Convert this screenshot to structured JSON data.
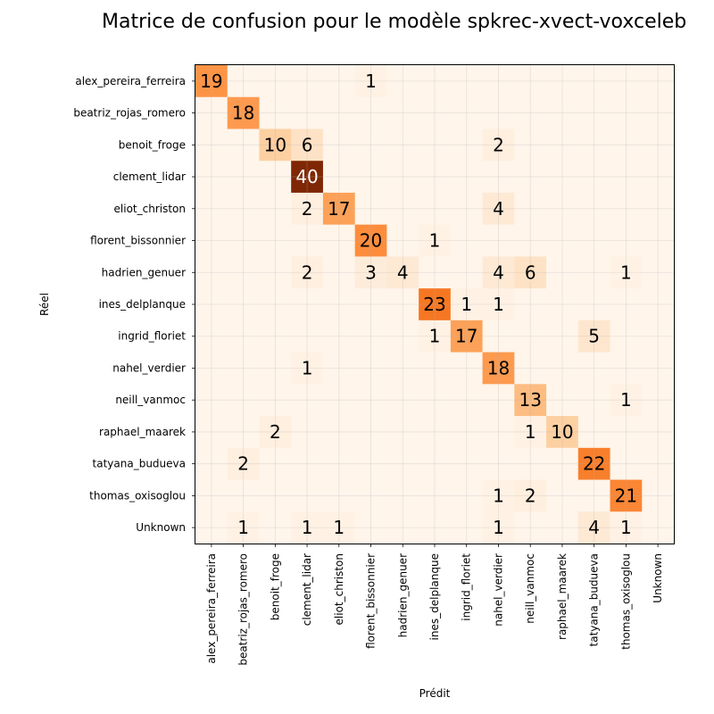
{
  "chart_data": {
    "type": "heatmap",
    "title": "Matrice de confusion pour le modèle spkrec-xvect-voxceleb",
    "xlabel": "Prédit",
    "ylabel": "Réel",
    "grid": true,
    "colormap": "Oranges",
    "colors": {
      "low": "#fff5eb",
      "mid": "#fd8d3c",
      "high": "#7f2704"
    },
    "vmax": 40,
    "row_labels": [
      "alex_pereira_ferreira",
      "beatriz_rojas_romero",
      "benoit_froge",
      "clement_lidar",
      "eliot_christon",
      "florent_bissonnier",
      "hadrien_genuer",
      "ines_delplanque",
      "ingrid_floriet",
      "nahel_verdier",
      "neill_vanmoc",
      "raphael_maarek",
      "tatyana_budueva",
      "thomas_oxisoglou",
      "Unknown"
    ],
    "col_labels": [
      "alex_pereira_ferreira",
      "beatriz_rojas_romero",
      "benoit_froge",
      "clement_lidar",
      "eliot_christon",
      "florent_bissonnier",
      "hadrien_genuer",
      "ines_delplanque",
      "ingrid_floriet",
      "nahel_verdier",
      "neill_vanmoc",
      "raphael_maarek",
      "tatyana_budueva",
      "thomas_oxisoglou",
      "Unknown"
    ],
    "matrix": [
      [
        19,
        0,
        0,
        0,
        0,
        1,
        0,
        0,
        0,
        0,
        0,
        0,
        0,
        0,
        0
      ],
      [
        0,
        18,
        0,
        0,
        0,
        0,
        0,
        0,
        0,
        0,
        0,
        0,
        0,
        0,
        0
      ],
      [
        0,
        0,
        10,
        6,
        0,
        0,
        0,
        0,
        0,
        2,
        0,
        0,
        0,
        0,
        0
      ],
      [
        0,
        0,
        0,
        40,
        0,
        0,
        0,
        0,
        0,
        0,
        0,
        0,
        0,
        0,
        0
      ],
      [
        0,
        0,
        0,
        2,
        17,
        0,
        0,
        0,
        0,
        4,
        0,
        0,
        0,
        0,
        0
      ],
      [
        0,
        0,
        0,
        0,
        0,
        20,
        0,
        1,
        0,
        0,
        0,
        0,
        0,
        0,
        0
      ],
      [
        0,
        0,
        0,
        2,
        0,
        3,
        4,
        0,
        0,
        4,
        6,
        0,
        0,
        1,
        0
      ],
      [
        0,
        0,
        0,
        0,
        0,
        0,
        0,
        23,
        1,
        1,
        0,
        0,
        0,
        0,
        0
      ],
      [
        0,
        0,
        0,
        0,
        0,
        0,
        0,
        1,
        17,
        0,
        0,
        0,
        5,
        0,
        0
      ],
      [
        0,
        0,
        0,
        1,
        0,
        0,
        0,
        0,
        0,
        18,
        0,
        0,
        0,
        0,
        0
      ],
      [
        0,
        0,
        0,
        0,
        0,
        0,
        0,
        0,
        0,
        0,
        13,
        0,
        0,
        1,
        0
      ],
      [
        0,
        0,
        2,
        0,
        0,
        0,
        0,
        0,
        0,
        0,
        1,
        10,
        0,
        0,
        0
      ],
      [
        0,
        2,
        0,
        0,
        0,
        0,
        0,
        0,
        0,
        0,
        0,
        0,
        22,
        0,
        0
      ],
      [
        0,
        0,
        0,
        0,
        0,
        0,
        0,
        0,
        0,
        1,
        2,
        0,
        0,
        21,
        0
      ],
      [
        0,
        1,
        0,
        1,
        1,
        0,
        0,
        0,
        0,
        1,
        0,
        0,
        4,
        1,
        0
      ]
    ]
  }
}
